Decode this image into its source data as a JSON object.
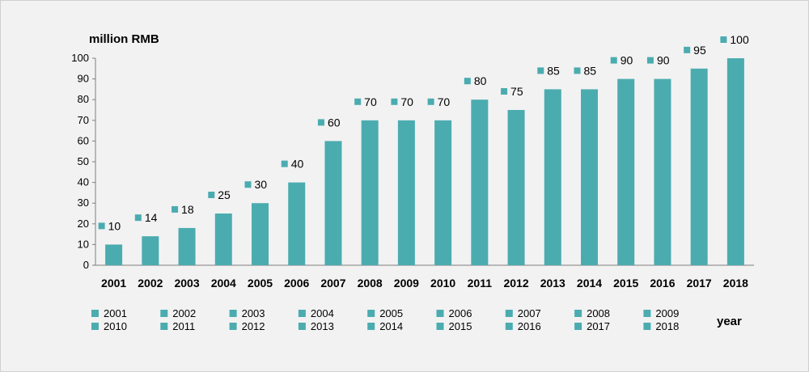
{
  "chart_data": {
    "type": "bar",
    "unit_label": "million RMB",
    "xlabel": "year",
    "ylabel": "",
    "categories": [
      "2001",
      "2002",
      "2003",
      "2004",
      "2005",
      "2006",
      "2007",
      "2008",
      "2009",
      "2010",
      "2011",
      "2012",
      "2013",
      "2014",
      "2015",
      "2016",
      "2017",
      "2018"
    ],
    "values": [
      10,
      14,
      18,
      25,
      30,
      40,
      60,
      70,
      70,
      70,
      80,
      75,
      85,
      85,
      90,
      90,
      95,
      100
    ],
    "ylim": [
      0,
      100
    ],
    "yticks": [
      0,
      10,
      20,
      30,
      40,
      50,
      60,
      70,
      80,
      90,
      100
    ],
    "grid": false,
    "legend": {
      "placement": "bottom",
      "entries": [
        "2001",
        "2002",
        "2003",
        "2004",
        "2005",
        "2006",
        "2007",
        "2008",
        "2009",
        "2010",
        "2011",
        "2012",
        "2013",
        "2014",
        "2015",
        "2016",
        "2017",
        "2018"
      ]
    },
    "colors": {
      "bar": "#4bacb0",
      "marker": "#4bacb0",
      "axis": "#7f7f7f",
      "background": "#f2f2f2"
    }
  }
}
